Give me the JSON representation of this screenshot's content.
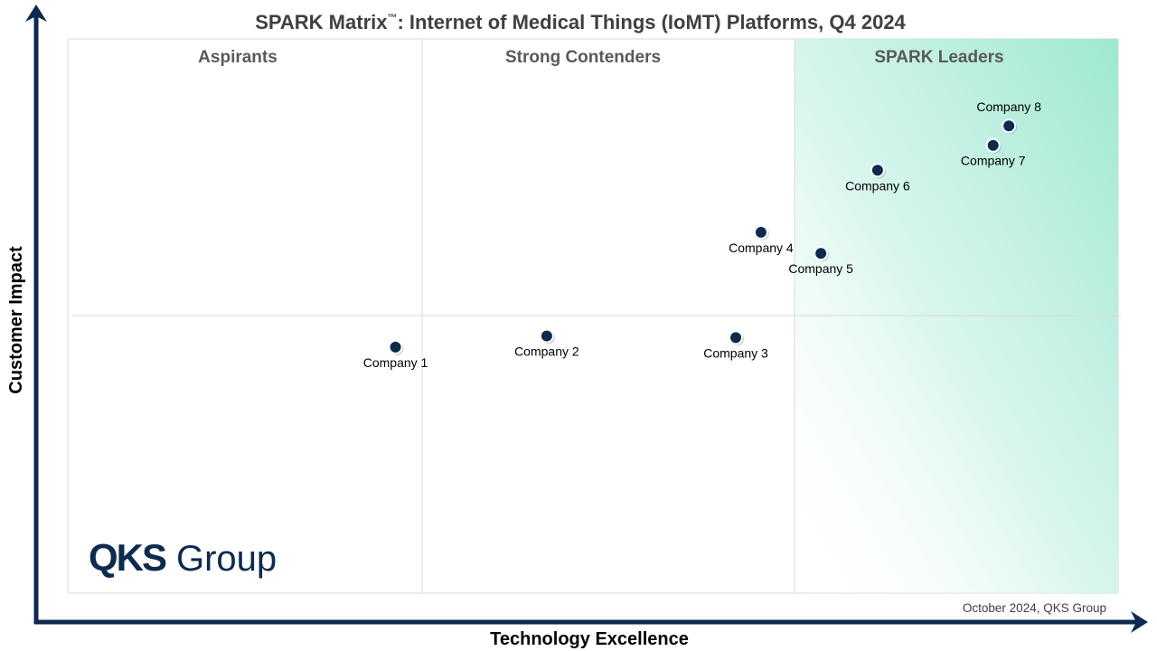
{
  "chart_data": {
    "type": "scatter",
    "title": "SPARK Matrix",
    "title_tm": "™",
    "title_rest": ": Internet of Medical Things (IoMT) Platforms, Q4 2024",
    "xlabel": "Technology Excellence",
    "ylabel": "Customer Impact",
    "xlim": [
      0,
      100
    ],
    "ylim": [
      0,
      100
    ],
    "grid": true,
    "quadrants": [
      "Aspirants",
      "Strong Contenders",
      "SPARK Leaders"
    ],
    "points": [
      {
        "label": "Company 1",
        "x": 31.2,
        "y": 44.4,
        "label_pos": "below"
      },
      {
        "label": "Company 2",
        "x": 45.6,
        "y": 46.4,
        "label_pos": "below"
      },
      {
        "label": "Company 3",
        "x": 63.6,
        "y": 46.1,
        "label_pos": "below"
      },
      {
        "label": "Company 4",
        "x": 66.0,
        "y": 65.1,
        "label_pos": "below"
      },
      {
        "label": "Company 5",
        "x": 71.7,
        "y": 61.3,
        "label_pos": "below"
      },
      {
        "label": "Company 6",
        "x": 77.1,
        "y": 76.3,
        "label_pos": "below"
      },
      {
        "label": "Company 7",
        "x": 88.1,
        "y": 80.8,
        "label_pos": "below"
      },
      {
        "label": "Company 8",
        "x": 89.6,
        "y": 84.3,
        "label_pos": "above"
      }
    ]
  },
  "logo": {
    "brand": "QKS",
    "suffix": "Group"
  },
  "footer_note": "October 2024, QKS Group",
  "colors": {
    "axis": "#0d2a4f",
    "marker": "#0d2a4f",
    "leader_gradient": "#9ee8d2",
    "gridline": "#d9d9d9"
  }
}
